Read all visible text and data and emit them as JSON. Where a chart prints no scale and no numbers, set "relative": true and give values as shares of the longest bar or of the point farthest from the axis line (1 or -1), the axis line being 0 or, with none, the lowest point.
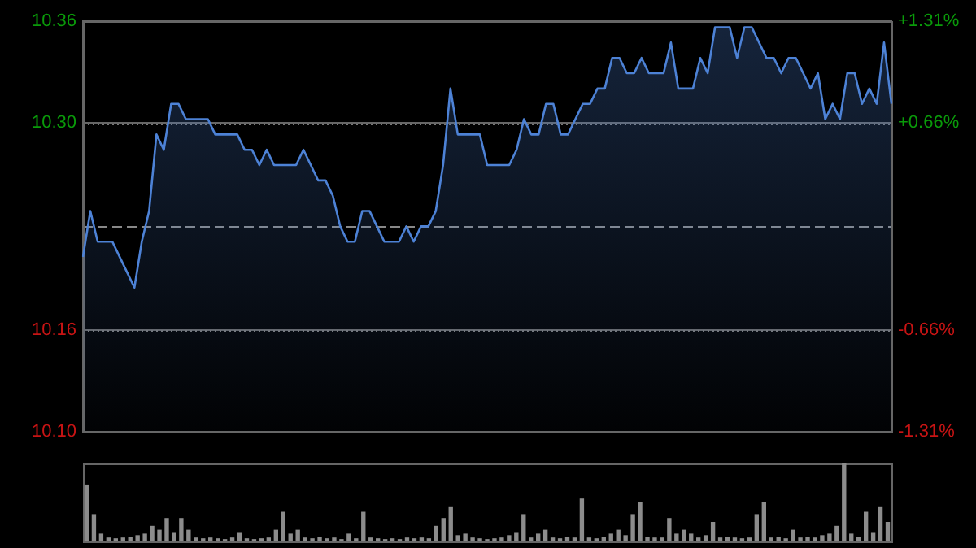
{
  "chart_data": [
    {
      "type": "area",
      "color": "#4d82d6",
      "categories": [
        null,
        null,
        null,
        null,
        null,
        null,
        null,
        null,
        null,
        null,
        null,
        null,
        null,
        null,
        null,
        null,
        null,
        null,
        null,
        null,
        null,
        null,
        null,
        null,
        null,
        null,
        null,
        null,
        null,
        null,
        null,
        null,
        null,
        null,
        null,
        null,
        null,
        null,
        null,
        null,
        null,
        null,
        null,
        null,
        null,
        null,
        null,
        null,
        null,
        null,
        null,
        null,
        null,
        null,
        null,
        null,
        null,
        null,
        null,
        null,
        null,
        null,
        null,
        null,
        null,
        null,
        null,
        null,
        null,
        null,
        null,
        null,
        null,
        null,
        null,
        null,
        null,
        null,
        null,
        null,
        null,
        null,
        null,
        null,
        null,
        null,
        null,
        null,
        null,
        null,
        null,
        null,
        null,
        null,
        null,
        null,
        null,
        null,
        null,
        null,
        null,
        null,
        null,
        null,
        null,
        null,
        null,
        null,
        null,
        null,
        null
      ],
      "values": [
        10.21,
        10.24,
        10.22,
        10.22,
        10.22,
        10.21,
        10.2,
        10.19,
        10.22,
        10.24,
        10.29,
        10.28,
        10.31,
        10.31,
        10.3,
        10.3,
        10.3,
        10.3,
        10.29,
        10.29,
        10.29,
        10.29,
        10.28,
        10.28,
        10.27,
        10.28,
        10.27,
        10.27,
        10.27,
        10.27,
        10.28,
        10.27,
        10.26,
        10.26,
        10.25,
        10.23,
        10.22,
        10.22,
        10.24,
        10.24,
        10.23,
        10.22,
        10.22,
        10.22,
        10.23,
        10.22,
        10.23,
        10.23,
        10.24,
        10.27,
        10.32,
        10.29,
        10.29,
        10.29,
        10.29,
        10.27,
        10.27,
        10.27,
        10.27,
        10.28,
        10.3,
        10.29,
        10.29,
        10.31,
        10.31,
        10.29,
        10.29,
        10.3,
        10.31,
        10.31,
        10.32,
        10.32,
        10.34,
        10.34,
        10.33,
        10.33,
        10.34,
        10.33,
        10.33,
        10.33,
        10.35,
        10.32,
        10.32,
        10.32,
        10.34,
        10.33,
        10.36,
        10.36,
        10.36,
        10.34,
        10.36,
        10.36,
        10.35,
        10.34,
        10.34,
        10.33,
        10.34,
        10.34,
        10.33,
        10.32,
        10.33,
        10.3,
        10.31,
        10.3,
        10.33,
        10.33,
        10.31,
        10.32,
        10.31,
        10.35,
        10.31
      ],
      "ylim": [
        10.096,
        10.364
      ],
      "yticks": [
        {
          "value": 10.364,
          "label": "10.36"
        },
        {
          "value": 10.2975,
          "label": "10.30"
        },
        {
          "value": 10.1625,
          "label": "10.16"
        },
        {
          "value": 10.096,
          "label": "10.10"
        }
      ],
      "y2lim": [
        -1.31,
        1.31
      ],
      "y2ticks": [
        {
          "value": 1.31,
          "label": "+1.31%"
        },
        {
          "value": 0.66,
          "label": "+0.66%"
        },
        {
          "value": -0.66,
          "label": "-0.66%"
        },
        {
          "value": -1.31,
          "label": "-1.31%"
        }
      ],
      "ref_lines": [
        {
          "axis": "y",
          "value": 10.23,
          "line_style": "dashed"
        }
      ],
      "grid": "y",
      "tick_labels": "y"
    },
    {
      "type": "bar",
      "relative": true,
      "color": "#8c8c8c",
      "tick_labels": false,
      "categories": [
        null,
        null,
        null,
        null,
        null,
        null,
        null,
        null,
        null,
        null,
        null,
        null,
        null,
        null,
        null,
        null,
        null,
        null,
        null,
        null,
        null,
        null,
        null,
        null,
        null,
        null,
        null,
        null,
        null,
        null,
        null,
        null,
        null,
        null,
        null,
        null,
        null,
        null,
        null,
        null,
        null,
        null,
        null,
        null,
        null,
        null,
        null,
        null,
        null,
        null,
        null,
        null,
        null,
        null,
        null,
        null,
        null,
        null,
        null,
        null,
        null,
        null,
        null,
        null,
        null,
        null,
        null,
        null,
        null,
        null,
        null,
        null,
        null,
        null,
        null,
        null,
        null,
        null,
        null,
        null,
        null,
        null,
        null,
        null,
        null,
        null,
        null,
        null,
        null,
        null,
        null,
        null,
        null,
        null,
        null,
        null,
        null,
        null,
        null,
        null,
        null,
        null,
        null,
        null,
        null,
        null,
        null,
        null,
        null,
        null,
        null
      ],
      "values": [
        0.73,
        0.35,
        0.1,
        0.05,
        0.04,
        0.05,
        0.06,
        0.08,
        0.1,
        0.2,
        0.15,
        0.3,
        0.12,
        0.3,
        0.15,
        0.05,
        0.04,
        0.05,
        0.04,
        0.03,
        0.05,
        0.12,
        0.04,
        0.03,
        0.04,
        0.05,
        0.15,
        0.38,
        0.1,
        0.15,
        0.05,
        0.04,
        0.06,
        0.04,
        0.05,
        0.03,
        0.1,
        0.04,
        0.38,
        0.05,
        0.04,
        0.03,
        0.04,
        0.03,
        0.05,
        0.04,
        0.05,
        0.04,
        0.2,
        0.3,
        0.45,
        0.08,
        0.1,
        0.05,
        0.04,
        0.03,
        0.04,
        0.05,
        0.08,
        0.12,
        0.35,
        0.05,
        0.1,
        0.15,
        0.05,
        0.04,
        0.06,
        0.05,
        0.55,
        0.05,
        0.04,
        0.06,
        0.1,
        0.15,
        0.08,
        0.35,
        0.5,
        0.06,
        0.05,
        0.05,
        0.3,
        0.1,
        0.15,
        0.1,
        0.05,
        0.08,
        0.25,
        0.05,
        0.06,
        0.05,
        0.04,
        0.05,
        0.35,
        0.5,
        0.05,
        0.06,
        0.04,
        0.15,
        0.05,
        0.06,
        0.05,
        0.08,
        0.1,
        0.2,
        1,
        0.1,
        0.06,
        0.38,
        0.12,
        0.45,
        0.25
      ]
    }
  ]
}
